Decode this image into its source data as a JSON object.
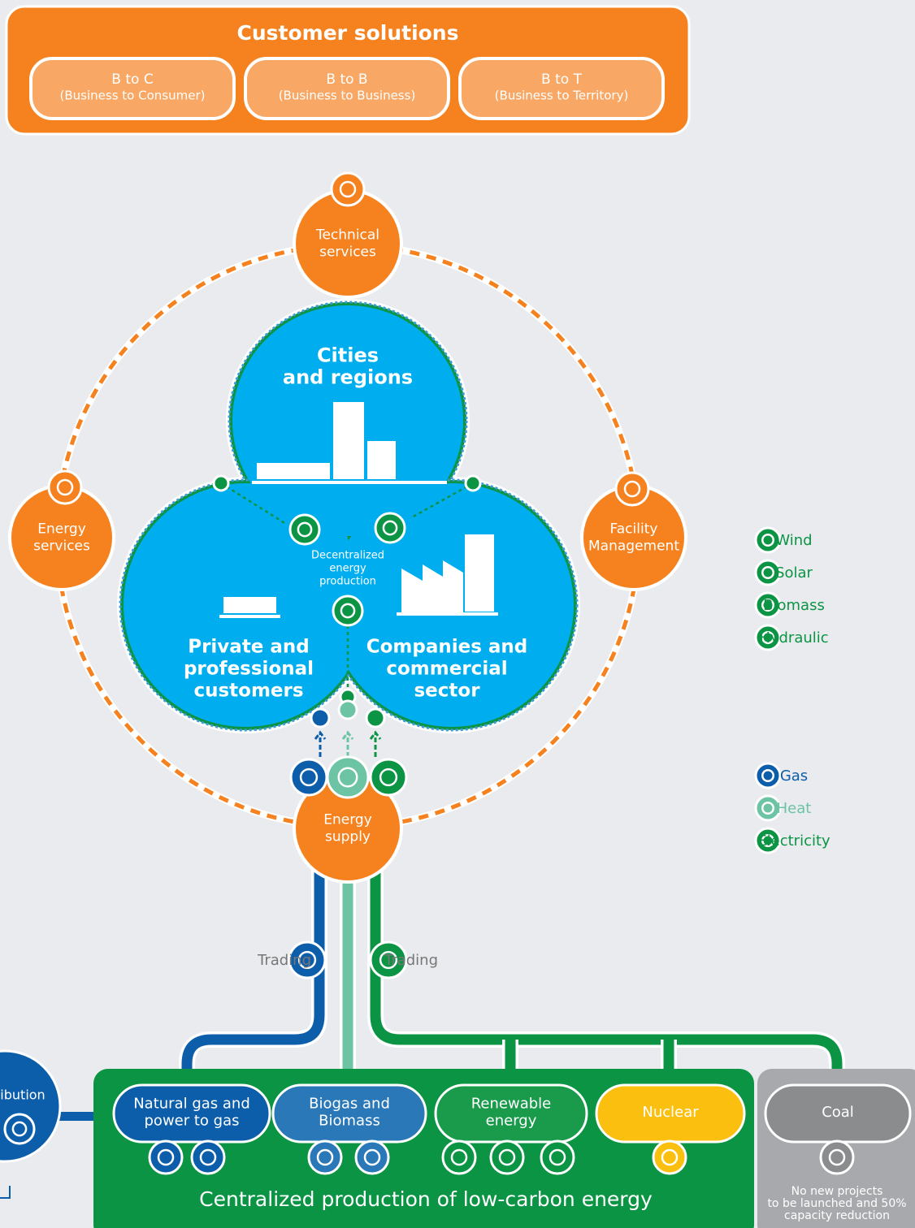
{
  "header": {
    "title": "Customer solutions",
    "segments": [
      {
        "name": "B to C",
        "detail": "(Business to Consumer)"
      },
      {
        "name": "B to B",
        "detail": "(Business to Business)"
      },
      {
        "name": "B to T",
        "detail": "(Business to Territory)"
      }
    ]
  },
  "services": {
    "technical": [
      "Technical",
      "services"
    ],
    "energy": [
      "Energy",
      "services"
    ],
    "facility": [
      "Facility",
      "Management"
    ],
    "supply": [
      "Energy",
      "supply"
    ]
  },
  "regions": {
    "cities": [
      "Cities",
      "and regions"
    ],
    "private": [
      "Private and",
      "professional",
      "customers"
    ],
    "companies": [
      "Companies and",
      "commercial",
      "sector"
    ],
    "decentralized": [
      "Decentralized",
      "energy",
      "production"
    ]
  },
  "legend": {
    "production": [
      "Wind",
      "Solar",
      "Biomass",
      "Hydraulic"
    ],
    "carriers": [
      "Gas",
      "Heat",
      "Electricity"
    ]
  },
  "trading": [
    "Trading",
    "Trading"
  ],
  "distribution": "ibution",
  "production": {
    "title": "Centralized production of low-carbon energy",
    "sources": [
      [
        "Natural gas and",
        "power to gas"
      ],
      [
        "Biogas and",
        "Biomass"
      ],
      [
        "Renewable",
        "energy"
      ],
      [
        "Nuclear"
      ],
      [
        "Coal"
      ]
    ],
    "coal_note": [
      "No new projects",
      "to be launched and 50%",
      "capacity reduction"
    ]
  }
}
